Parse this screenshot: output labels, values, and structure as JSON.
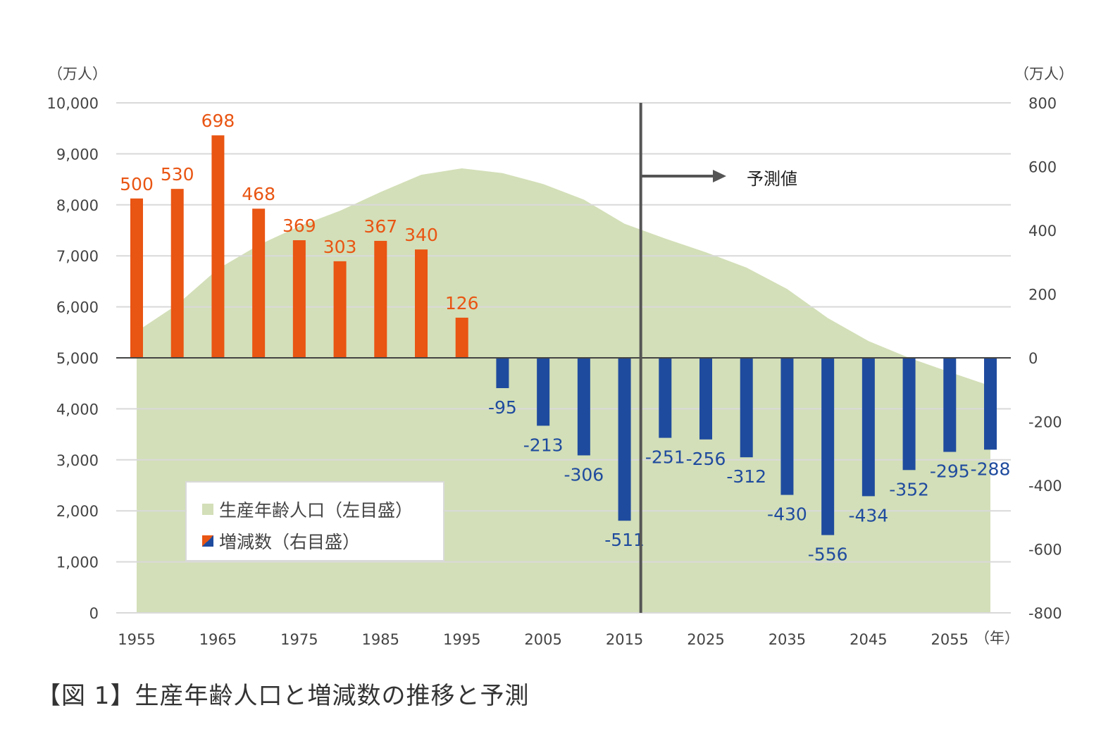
{
  "chart_data": {
    "type": "bar+area",
    "title": "【図 1】生産年齢人口と増減数の推移と予測",
    "x": [
      1955,
      1960,
      1965,
      1970,
      1975,
      1980,
      1985,
      1990,
      1995,
      2000,
      2005,
      2010,
      2015,
      2020,
      2025,
      2030,
      2035,
      2040,
      2045,
      2050,
      2055,
      2060
    ],
    "x_tick_labels": [
      "1955",
      "1965",
      "1975",
      "1985",
      "1995",
      "2005",
      "2015",
      "2025",
      "2035",
      "2045",
      "2055"
    ],
    "x_unit": "（年）",
    "left_axis": {
      "unit": "（万人）",
      "ylim": [
        0,
        10000
      ],
      "ticks": [
        "0",
        "1,000",
        "2,000",
        "3,000",
        "4,000",
        "5,000",
        "6,000",
        "7,000",
        "8,000",
        "9,000",
        "10,000"
      ]
    },
    "right_axis": {
      "unit": "（万人）",
      "ylim": [
        -800,
        800
      ],
      "ticks": [
        "-800",
        "-600",
        "-400",
        "-200",
        "0",
        "200",
        "400",
        "600",
        "800"
      ]
    },
    "series": [
      {
        "name": "生産年齢人口（左目盛）",
        "type": "area",
        "axis": "left",
        "color": "#d3dfb8",
        "values": [
          5517,
          6047,
          6744,
          7212,
          7581,
          7883,
          8251,
          8590,
          8716,
          8622,
          8409,
          8103,
          7629,
          7340,
          7070,
          6770,
          6350,
          5780,
          5330,
          5000,
          4720,
          4450
        ]
      },
      {
        "name": "増減数（右目盛）",
        "type": "bar",
        "axis": "right",
        "color_positive": "#e95513",
        "color_negative": "#1f4b9e",
        "values": [
          500,
          530,
          698,
          468,
          369,
          303,
          367,
          340,
          126,
          -95,
          -213,
          -306,
          -511,
          -251,
          -256,
          -312,
          -430,
          -556,
          -434,
          -352,
          -295,
          -288
        ]
      }
    ],
    "forecast_start": 2017,
    "annotation": "予測値",
    "grid": true,
    "legend_position": "bottom-left"
  }
}
